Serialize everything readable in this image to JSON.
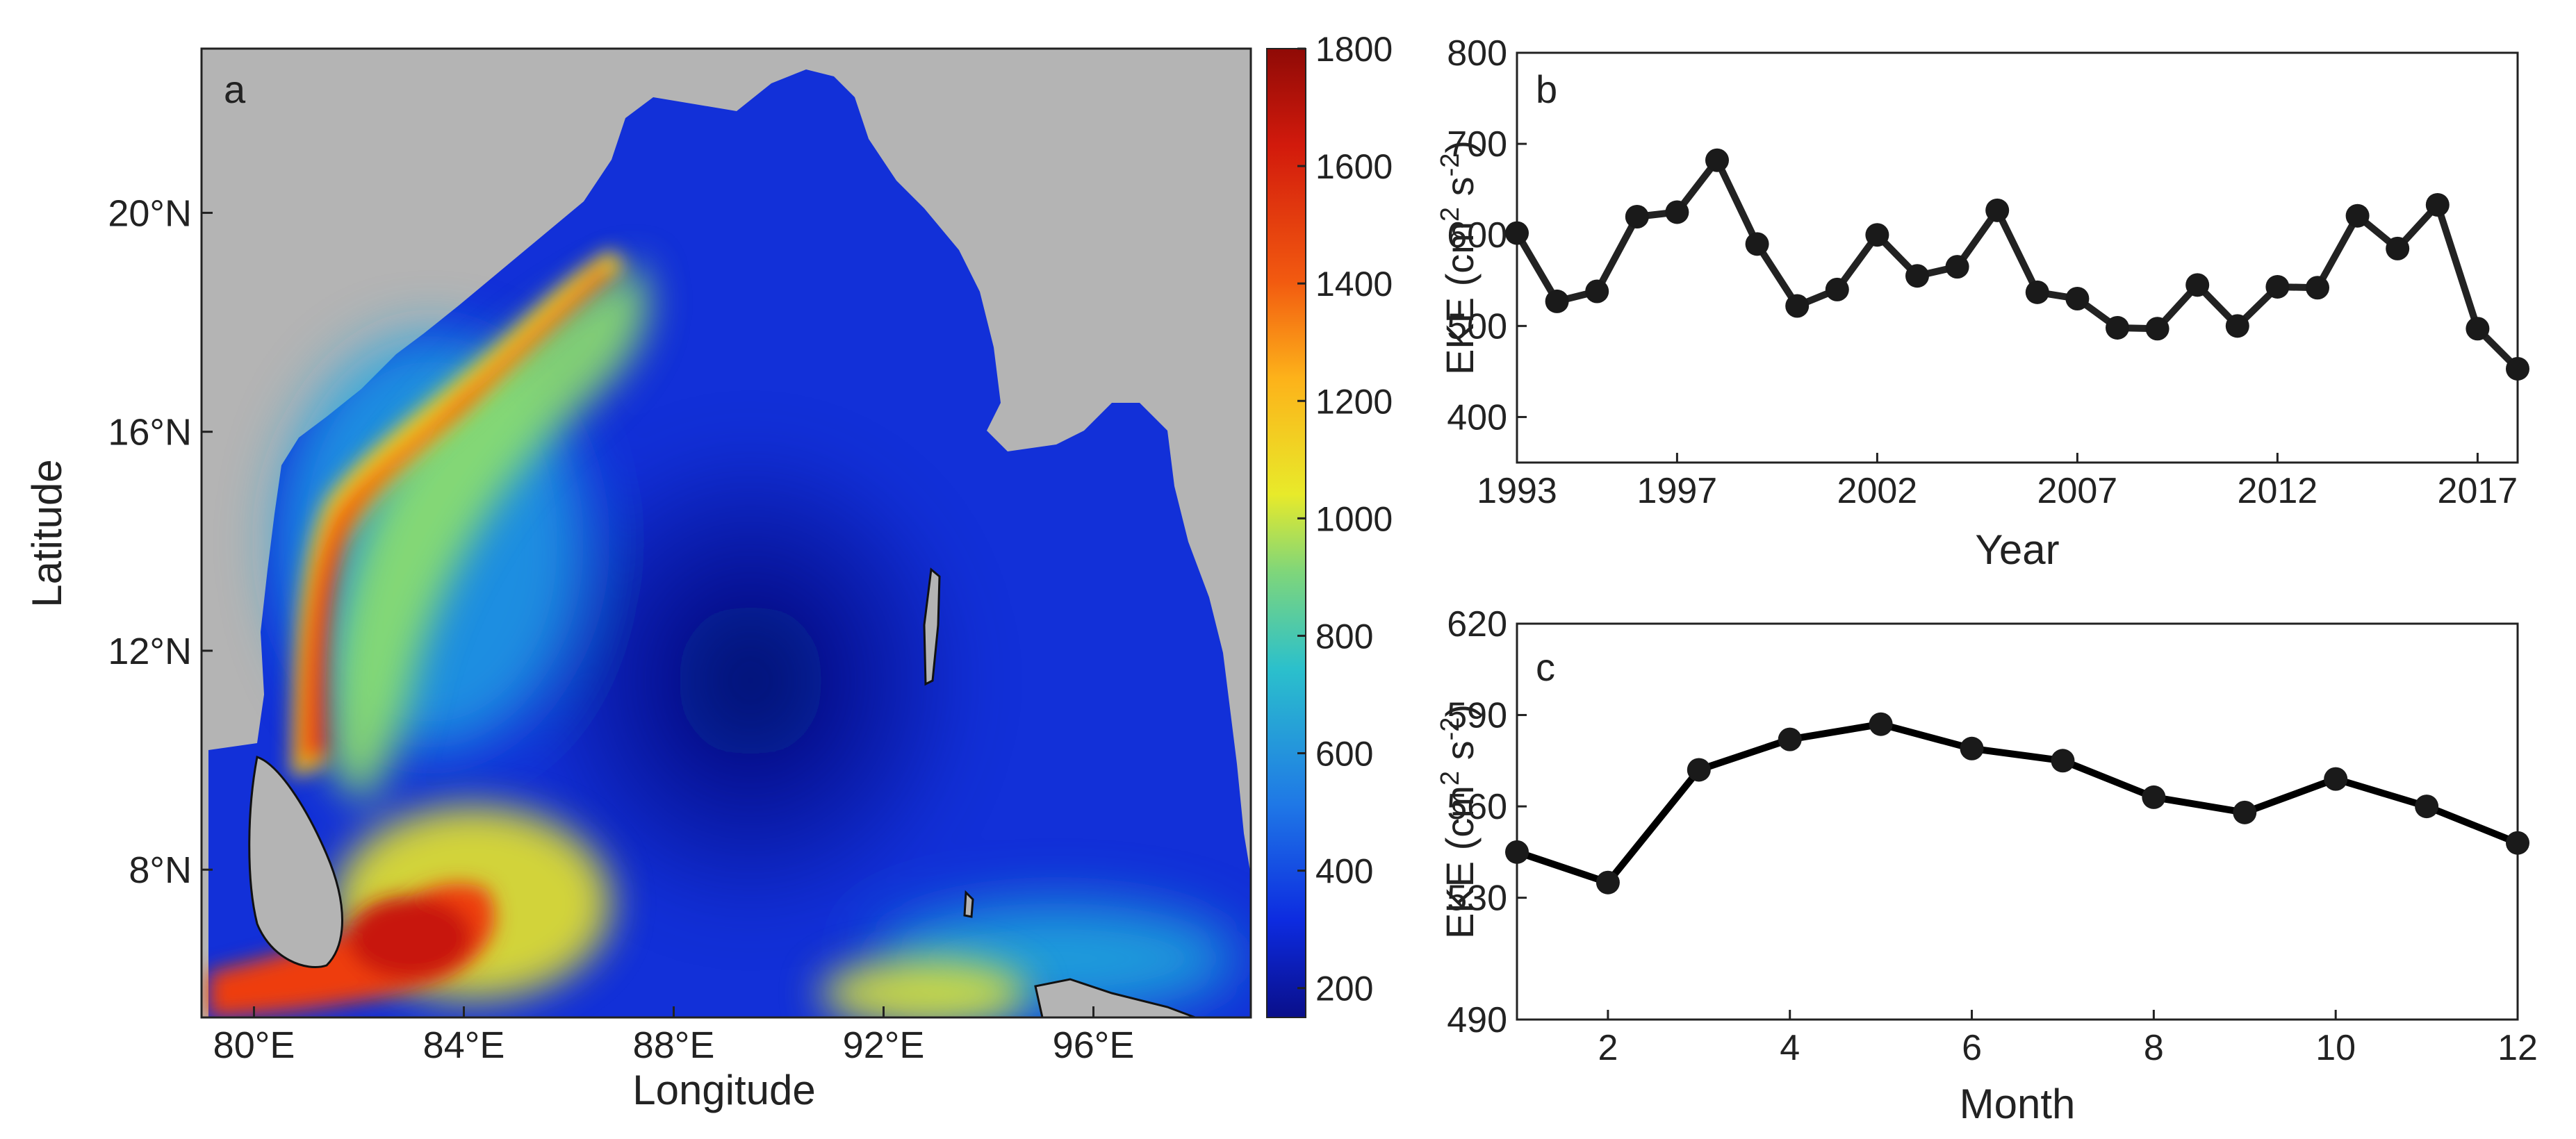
{
  "chart_data": [
    {
      "panel": "a",
      "type": "heatmap",
      "panel_label": "a",
      "xlabel": "Longitude",
      "ylabel": "Latitude",
      "xlim": [
        79,
        99
      ],
      "ylim": [
        5.3,
        23.0
      ],
      "x_ticks": [
        {
          "value": 80,
          "label": "80°E"
        },
        {
          "value": 84,
          "label": "84°E"
        },
        {
          "value": 88,
          "label": "88°E"
        },
        {
          "value": 92,
          "label": "92°E"
        },
        {
          "value": 96,
          "label": "96°E"
        }
      ],
      "y_ticks": [
        {
          "value": 8,
          "label": "8°N"
        },
        {
          "value": 12,
          "label": "12°N"
        },
        {
          "value": 16,
          "label": "16°N"
        },
        {
          "value": 20,
          "label": "20°N"
        }
      ],
      "colorbar": {
        "min": 150,
        "max": 1800,
        "ticks": [
          "1800",
          "1600",
          "1400",
          "1200",
          "1000",
          "800",
          "600",
          "400",
          "200"
        ],
        "colors": [
          "#0a0f8a",
          "#0d2be0",
          "#1f78e6",
          "#2bc0cc",
          "#7fd67a",
          "#e8ea2a",
          "#fdb21a",
          "#f25a10",
          "#d21a0c",
          "#8f0a06"
        ]
      },
      "features": [
        {
          "name": "western-boundary-current",
          "level": 1650
        },
        {
          "name": "sri-lanka-dome",
          "level": 1550
        },
        {
          "name": "northern-bay-front",
          "level": 1000
        },
        {
          "name": "andaman-southern-patch",
          "level": 1050
        },
        {
          "name": "central-bay-minimum",
          "level": 250
        }
      ]
    },
    {
      "panel": "b",
      "type": "line",
      "panel_label": "b",
      "xlabel": "Year",
      "ylabel_main": "EKE (cm",
      "ylabel_sup1": "2",
      "ylabel_mid": " s",
      "ylabel_sup2": "-2",
      "ylabel_end": ")",
      "xlim": [
        1993,
        2018
      ],
      "ylim": [
        350,
        800
      ],
      "x_ticks": [
        "1993",
        "1997",
        "2002",
        "2007",
        "2012",
        "2017"
      ],
      "y_ticks": [
        "400",
        "500",
        "600",
        "700",
        "800"
      ],
      "x": [
        1993,
        1994,
        1995,
        1996,
        1997,
        1998,
        1999,
        2000,
        2001,
        2002,
        2003,
        2004,
        2005,
        2006,
        2007,
        2008,
        2009,
        2010,
        2011,
        2012,
        2013,
        2014,
        2015,
        2016,
        2017,
        2018
      ],
      "values": [
        602,
        527,
        538,
        620,
        625,
        682,
        590,
        522,
        540,
        600,
        555,
        565,
        627,
        537,
        530,
        498,
        497,
        545,
        500,
        543,
        542,
        621,
        585,
        633,
        497,
        453
      ]
    },
    {
      "panel": "c",
      "type": "line",
      "panel_label": "c",
      "xlabel": "Month",
      "ylabel_main": "EKE  (cm",
      "ylabel_sup1": "2",
      "ylabel_mid": " s",
      "ylabel_sup2": "-2",
      "ylabel_end": ")",
      "xlim": [
        1,
        12
      ],
      "ylim": [
        490,
        620
      ],
      "x_ticks": [
        "2",
        "4",
        "6",
        "8",
        "10",
        "12"
      ],
      "y_ticks": [
        "490",
        "530",
        "560",
        "590",
        "620"
      ],
      "x": [
        1,
        2,
        3,
        4,
        5,
        6,
        7,
        8,
        9,
        10,
        11,
        12
      ],
      "values": [
        545,
        535,
        572,
        582,
        587,
        579,
        575,
        563,
        558,
        569,
        560,
        548
      ]
    }
  ]
}
